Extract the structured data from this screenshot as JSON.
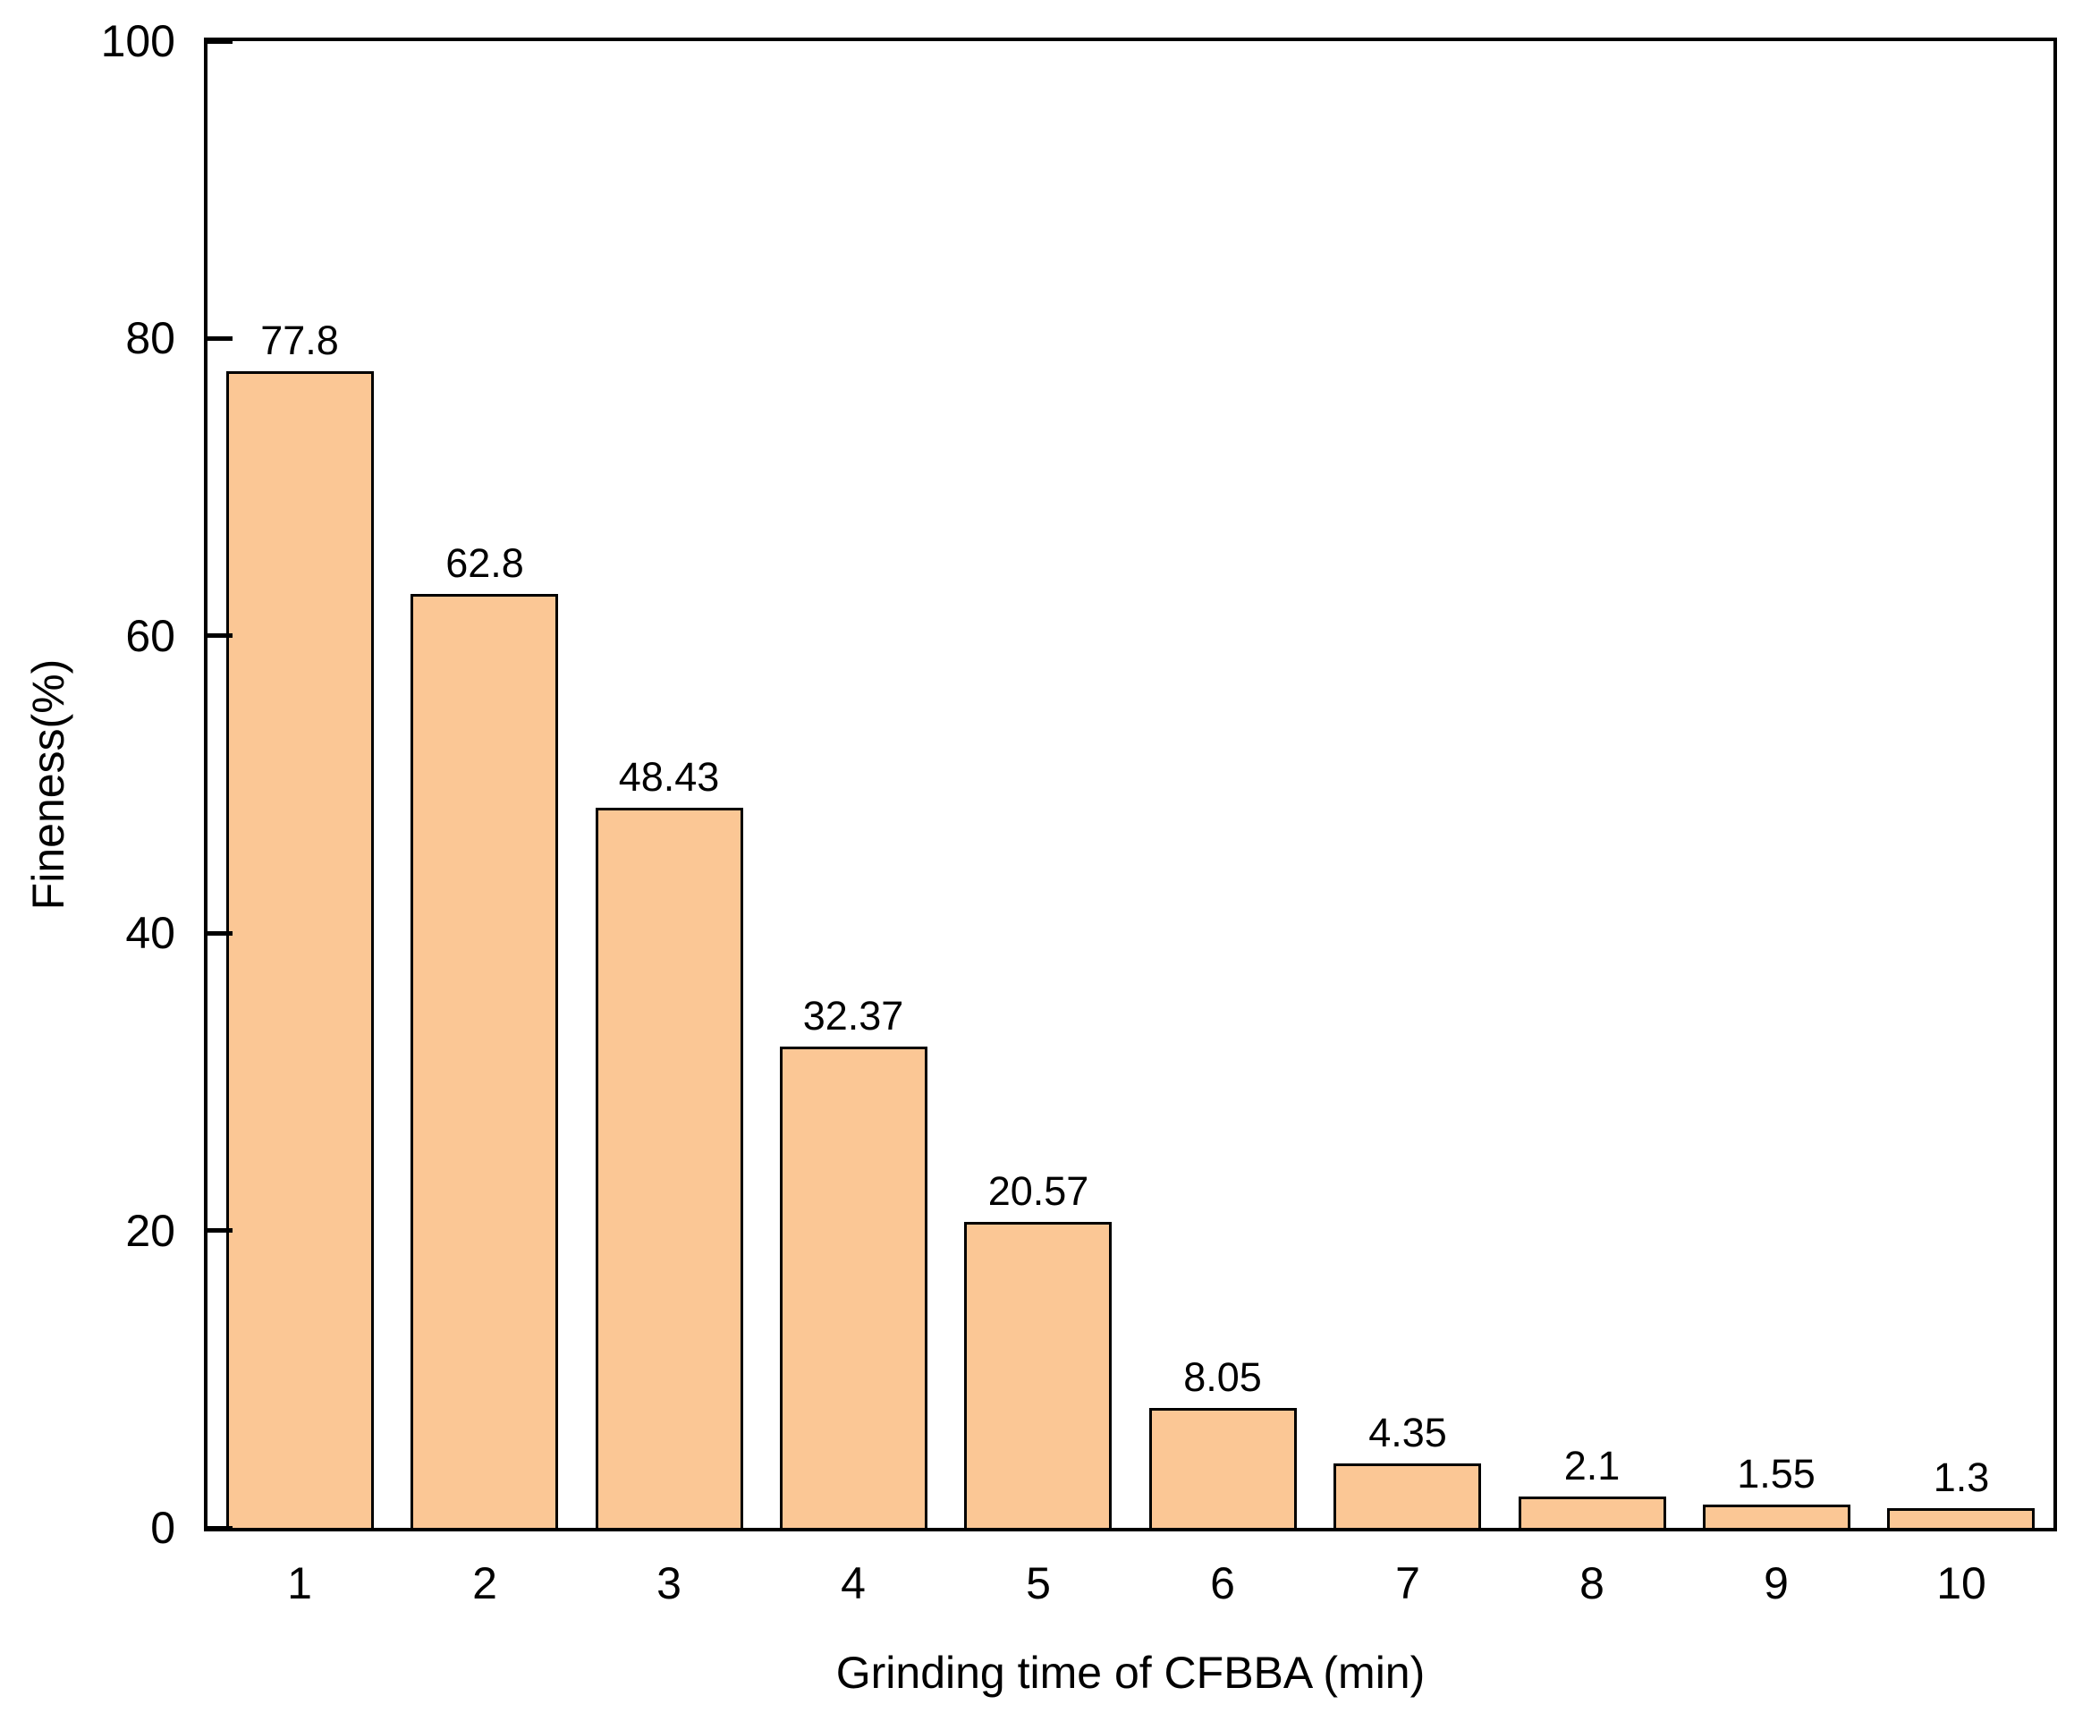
{
  "chart_data": {
    "type": "bar",
    "title": "",
    "xlabel": "Grinding time of CFBBA (min)",
    "ylabel": "Fineness(%)",
    "categories": [
      "1",
      "2",
      "3",
      "4",
      "5",
      "6",
      "7",
      "8",
      "9",
      "10"
    ],
    "values": [
      77.8,
      62.8,
      48.43,
      32.37,
      20.57,
      8.05,
      4.35,
      2.1,
      1.55,
      1.3
    ],
    "value_labels": [
      "77.8",
      "62.8",
      "48.43",
      "32.37",
      "20.57",
      "8.05",
      "4.35",
      "2.1",
      "1.55",
      "1.3"
    ],
    "ylim": [
      0,
      100
    ],
    "yticks": [
      0,
      20,
      40,
      60,
      80,
      100
    ],
    "ytick_labels": [
      "0",
      "20",
      "40",
      "60",
      "80",
      "100"
    ],
    "grid": "off",
    "legend": "none",
    "bar_color": "#FBC795",
    "bar_edge_color": "#000000",
    "axis_color": "#000000",
    "text_color": "#000000",
    "background_color": "#FFFFFF"
  }
}
